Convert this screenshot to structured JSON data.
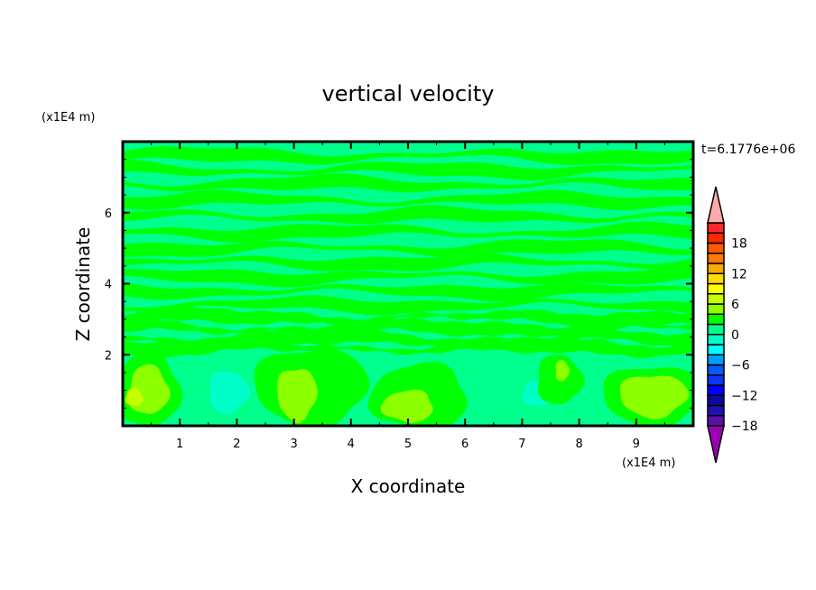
{
  "chart_data": {
    "type": "heatmap",
    "title": "vertical velocity",
    "xlabel": "X coordinate",
    "ylabel": "Z coordinate",
    "x_unit": "(x1E4 m)",
    "y_unit": "(x1E4 m)",
    "time_label": "t=6.1776e+06",
    "xlim": [
      0,
      10
    ],
    "ylim": [
      0,
      8
    ],
    "x_ticks": [
      "1",
      "2",
      "3",
      "4",
      "5",
      "6",
      "7",
      "8",
      "9"
    ],
    "y_ticks": [
      "2",
      "4",
      "6"
    ],
    "colorbar": {
      "levels": [
        -20,
        -18,
        -16,
        -14,
        -12,
        -10,
        -8,
        -6,
        -4,
        -2,
        0,
        2,
        4,
        6,
        8,
        10,
        12,
        14,
        16,
        18,
        20
      ],
      "labels": [
        "18",
        "12",
        "6",
        "0",
        "-6",
        "-12",
        "-18"
      ],
      "colors": [
        "#9a00b4",
        "#5a0fa8",
        "#2010b4",
        "#0a0aa0",
        "#0000ff",
        "#0a37ff",
        "#0a5aff",
        "#00a0ff",
        "#00ffff",
        "#00ffc8",
        "#00ff8c",
        "#00ff00",
        "#8cff00",
        "#c8ff00",
        "#ffff00",
        "#ffdc00",
        "#ffaa00",
        "#ff7800",
        "#ff5a00",
        "#ff2800",
        "#ff2828",
        "#ffaaaa"
      ]
    },
    "background_color": "#00ff8c",
    "features": [
      {
        "kind": "band",
        "z": 7.6,
        "value": 1
      },
      {
        "kind": "band",
        "z": 7.2,
        "value": 1
      },
      {
        "kind": "band",
        "z": 6.8,
        "value": 1
      },
      {
        "kind": "band",
        "z": 6.35,
        "value": 1
      },
      {
        "kind": "band",
        "z": 5.9,
        "value": 1
      },
      {
        "kind": "band",
        "z": 5.45,
        "value": 1
      },
      {
        "kind": "band",
        "z": 5.0,
        "value": 1
      },
      {
        "kind": "band",
        "z": 4.6,
        "value": 1
      },
      {
        "kind": "band",
        "z": 4.2,
        "value": 1
      },
      {
        "kind": "band",
        "z": 3.8,
        "value": 1
      },
      {
        "kind": "band",
        "z": 3.4,
        "value": 1
      },
      {
        "kind": "band",
        "z": 3.05,
        "value": 1
      },
      {
        "kind": "band",
        "z": 2.75,
        "value": 1
      },
      {
        "kind": "band",
        "z": 2.45,
        "value": 1
      },
      {
        "kind": "band",
        "z": 2.2,
        "value": 1
      },
      {
        "kind": "blob",
        "x": 0.45,
        "z": 1.0,
        "rx": 0.55,
        "rz": 1.05,
        "value": 1
      },
      {
        "kind": "blob",
        "x": 0.45,
        "z": 1.0,
        "rx": 0.35,
        "rz": 0.7,
        "value": 3
      },
      {
        "kind": "blob",
        "x": 0.2,
        "z": 0.8,
        "rx": 0.15,
        "rz": 0.25,
        "value": 5
      },
      {
        "kind": "blob",
        "x": 1.8,
        "z": 1.0,
        "rx": 0.65,
        "rz": 0.85,
        "value": -1
      },
      {
        "kind": "blob",
        "x": 1.85,
        "z": 0.95,
        "rx": 0.35,
        "rz": 0.6,
        "value": -3
      },
      {
        "kind": "blob",
        "x": 3.3,
        "z": 1.1,
        "rx": 1.0,
        "rz": 1.1,
        "value": 1
      },
      {
        "kind": "blob",
        "x": 3.05,
        "z": 0.9,
        "rx": 0.35,
        "rz": 0.75,
        "value": 3
      },
      {
        "kind": "blob",
        "x": 5.2,
        "z": 0.8,
        "rx": 0.85,
        "rz": 0.95,
        "value": 1
      },
      {
        "kind": "blob",
        "x": 5.0,
        "z": 0.55,
        "rx": 0.45,
        "rz": 0.45,
        "value": 3
      },
      {
        "kind": "blob",
        "x": 7.6,
        "z": 0.95,
        "rx": 0.75,
        "rz": 0.7,
        "value": -1
      },
      {
        "kind": "blob",
        "x": 7.3,
        "z": 0.9,
        "rx": 0.3,
        "rz": 0.35,
        "value": -3
      },
      {
        "kind": "blob",
        "x": 7.65,
        "z": 1.3,
        "rx": 0.4,
        "rz": 0.7,
        "value": 1
      },
      {
        "kind": "blob",
        "x": 7.7,
        "z": 1.55,
        "rx": 0.12,
        "rz": 0.3,
        "value": 3
      },
      {
        "kind": "blob",
        "x": 9.3,
        "z": 0.85,
        "rx": 0.9,
        "rz": 0.85,
        "value": 1
      },
      {
        "kind": "blob",
        "x": 9.3,
        "z": 0.85,
        "rx": 0.6,
        "rz": 0.6,
        "value": 3
      }
    ]
  }
}
